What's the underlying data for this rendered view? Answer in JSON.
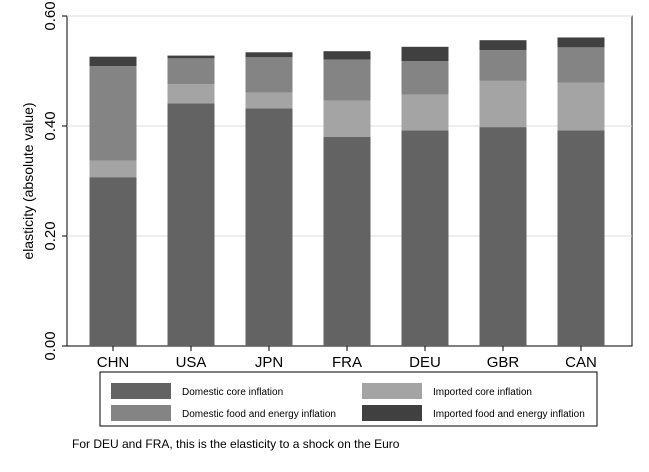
{
  "chart_data": {
    "type": "bar",
    "stacked": true,
    "categories": [
      "CHN",
      "USA",
      "JPN",
      "FRA",
      "DEU",
      "GBR",
      "CAN"
    ],
    "series": [
      {
        "name": "Domestic core inflation",
        "color": "#636363",
        "values": [
          0.307,
          0.441,
          0.432,
          0.38,
          0.392,
          0.398,
          0.392
        ]
      },
      {
        "name": "Imported core inflation",
        "color": "#a4a4a4",
        "values": [
          0.03,
          0.035,
          0.029,
          0.066,
          0.065,
          0.084,
          0.087
        ]
      },
      {
        "name": "Domestic food and energy inflation",
        "color": "#848484",
        "values": [
          0.172,
          0.047,
          0.064,
          0.075,
          0.061,
          0.056,
          0.064
        ]
      },
      {
        "name": "Imported food and energy inflation",
        "color": "#404040",
        "values": [
          0.017,
          0.005,
          0.009,
          0.015,
          0.026,
          0.018,
          0.018
        ]
      }
    ],
    "ylabel": "elasticity (absolute value)",
    "ylim": [
      0,
      0.6
    ],
    "yticks": [
      0,
      0.2,
      0.4,
      0.6
    ],
    "ytick_labels": [
      "0.00",
      "0.20",
      "0.40",
      "0.60"
    ],
    "grid": true,
    "legend_position": "bottom",
    "note": "For DEU and FRA, this is the elasticity to a shock on the Euro"
  }
}
